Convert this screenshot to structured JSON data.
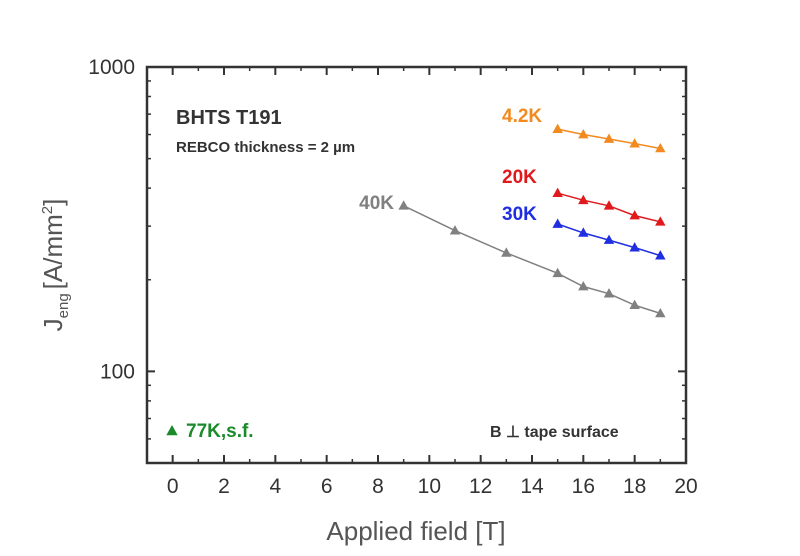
{
  "chart_data": {
    "type": "scatter",
    "xlabel": "Applied field [T]",
    "ylabel": "J",
    "ylabel_sub": "eng",
    "ylabel_unit": "[A/mm",
    "ylabel_sup": "2",
    "ylabel_close": "]",
    "xlim": [
      -1,
      20
    ],
    "ylim": [
      50,
      1000
    ],
    "yscale": "log",
    "x_ticks": [
      0,
      2,
      4,
      6,
      8,
      10,
      12,
      14,
      16,
      18,
      20
    ],
    "y_ticks": [
      100,
      1000
    ],
    "grid": false,
    "annotations": {
      "sample": "BHTS T191",
      "thickness": "REBCO thickness = 2 µm",
      "orientation": "B ⊥ tape surface"
    },
    "series": [
      {
        "name": "4.2K",
        "color": "#f28a1f",
        "x": [
          15,
          16,
          17,
          18,
          19
        ],
        "y": [
          625,
          600,
          580,
          560,
          540
        ]
      },
      {
        "name": "20K",
        "color": "#e0191c",
        "x": [
          15,
          16,
          17,
          18,
          19
        ],
        "y": [
          385,
          365,
          350,
          325,
          310
        ]
      },
      {
        "name": "30K",
        "color": "#1f2ee0",
        "x": [
          15,
          16,
          17,
          18,
          19
        ],
        "y": [
          305,
          285,
          270,
          255,
          240
        ]
      },
      {
        "name": "40K",
        "color": "#808080",
        "x": [
          9,
          11,
          13,
          15,
          16,
          17,
          18,
          19
        ],
        "y": [
          350,
          290,
          245,
          210,
          190,
          180,
          165,
          155
        ]
      },
      {
        "name": "77K,s.f.",
        "color": "#1a8a2a",
        "x": [],
        "y": []
      }
    ]
  }
}
